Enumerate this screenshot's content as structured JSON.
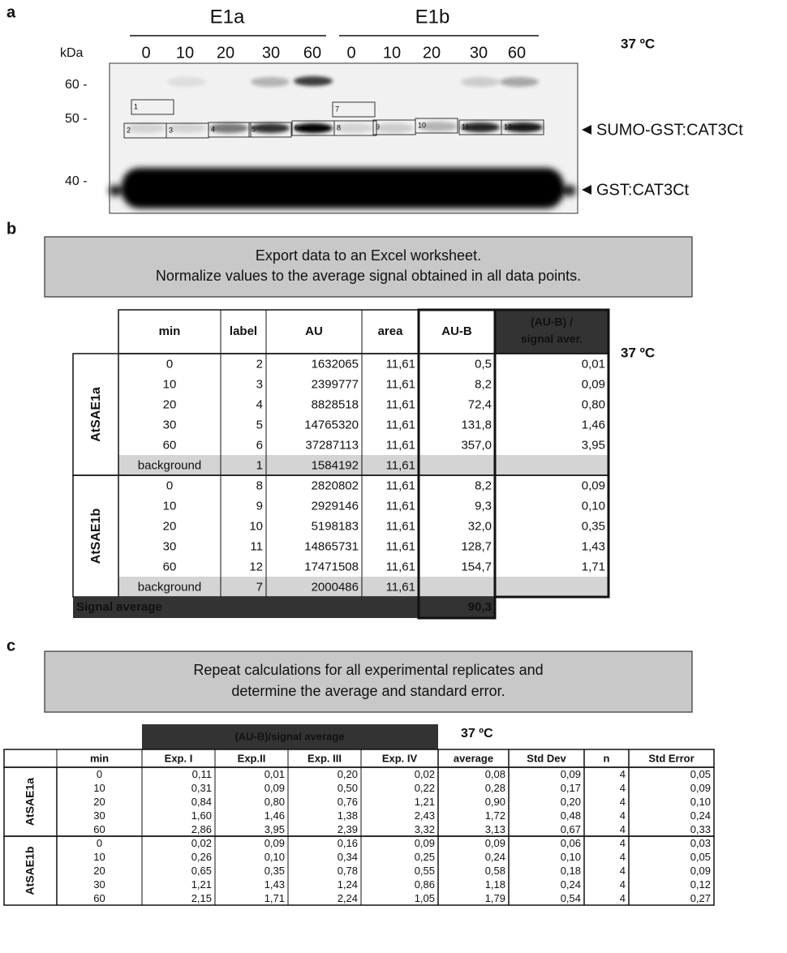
{
  "panel_a": {
    "letter": "a",
    "groups": [
      "E1a",
      "E1b"
    ],
    "lanes": [
      "0",
      "10",
      "20",
      "30",
      "60",
      "0",
      "10",
      "20",
      "30",
      "60"
    ],
    "kda_label": "kDa",
    "markers": [
      "60 -",
      "50 -",
      "40 -"
    ],
    "temperature": "37 ºC",
    "box_labels": [
      "1",
      "2",
      "3",
      "4",
      "5",
      "6",
      "7",
      "8",
      "9",
      "10",
      "11",
      "12"
    ],
    "bands": [
      "SUMO-GST:CAT3Ct",
      "GST:CAT3Ct"
    ]
  },
  "panel_b": {
    "letter": "b",
    "instruction": [
      "Export data to an Excel worksheet.",
      "Normalize values to the average signal obtained in all data points."
    ],
    "temperature": "37 ºC",
    "header": [
      "min",
      "label",
      "AU",
      "area",
      "AU-B"
    ],
    "header_last": [
      "(AU-B) /",
      "signal aver."
    ],
    "groups": [
      {
        "name": "AtSAE1a",
        "rows": [
          [
            "0",
            "2",
            "1632065",
            "11,61",
            "0,5",
            "0,01"
          ],
          [
            "10",
            "3",
            "2399777",
            "11,61",
            "8,2",
            "0,09"
          ],
          [
            "20",
            "4",
            "8828518",
            "11,61",
            "72,4",
            "0,80"
          ],
          [
            "30",
            "5",
            "14765320",
            "11,61",
            "131,8",
            "1,46"
          ],
          [
            "60",
            "6",
            "37287113",
            "11,61",
            "357,0",
            "3,95"
          ],
          [
            "background",
            "1",
            "1584192",
            "11,61"
          ]
        ]
      },
      {
        "name": "AtSAE1b",
        "rows": [
          [
            "0",
            "8",
            "2820802",
            "11,61",
            "8,2",
            "0,09"
          ],
          [
            "10",
            "9",
            "2929146",
            "11,61",
            "9,3",
            "0,10"
          ],
          [
            "20",
            "10",
            "5198183",
            "11,61",
            "32,0",
            "0,35"
          ],
          [
            "30",
            "11",
            "14865731",
            "11,61",
            "128,7",
            "1,43"
          ],
          [
            "60",
            "12",
            "17471508",
            "11,61",
            "154,7",
            "1,71"
          ],
          [
            "background",
            "7",
            "2000486",
            "11,61"
          ]
        ]
      }
    ],
    "footer": {
      "label": "Signal average",
      "value": "90,3"
    }
  },
  "panel_c": {
    "letter": "c",
    "instruction": [
      "Repeat calculations for all experimental replicates and",
      "determine the average and standard error."
    ],
    "super_header": "(AU-B)/signal average",
    "temperature": "37 ºC",
    "header": [
      "min",
      "Exp. I",
      "Exp.II",
      "Exp. III",
      "Exp. IV",
      "average",
      "Std Dev",
      "n",
      "Std Error"
    ],
    "groups": [
      {
        "name": "AtSAE1a",
        "rows": [
          [
            "0",
            "0,11",
            "0,01",
            "0,20",
            "0,02",
            "0,08",
            "0,09",
            "4",
            "0,05"
          ],
          [
            "10",
            "0,31",
            "0,09",
            "0,50",
            "0,22",
            "0,28",
            "0,17",
            "4",
            "0,09"
          ],
          [
            "20",
            "0,84",
            "0,80",
            "0,76",
            "1,21",
            "0,90",
            "0,20",
            "4",
            "0,10"
          ],
          [
            "30",
            "1,60",
            "1,46",
            "1,38",
            "2,43",
            "1,72",
            "0,48",
            "4",
            "0,24"
          ],
          [
            "60",
            "2,86",
            "3,95",
            "2,39",
            "3,32",
            "3,13",
            "0,67",
            "4",
            "0,33"
          ]
        ]
      },
      {
        "name": "AtSAE1b",
        "rows": [
          [
            "0",
            "0,02",
            "0,09",
            "0,16",
            "0,09",
            "0,09",
            "0,06",
            "4",
            "0,03"
          ],
          [
            "10",
            "0,26",
            "0,10",
            "0,34",
            "0,25",
            "0,24",
            "0,10",
            "4",
            "0,05"
          ],
          [
            "20",
            "0,65",
            "0,35",
            "0,78",
            "0,55",
            "0,58",
            "0,18",
            "4",
            "0,09"
          ],
          [
            "30",
            "1,21",
            "1,43",
            "1,24",
            "0,86",
            "1,18",
            "0,24",
            "4",
            "0,12"
          ],
          [
            "60",
            "2,15",
            "1,71",
            "2,24",
            "1,05",
            "1,79",
            "0,54",
            "4",
            "0,27"
          ]
        ]
      }
    ]
  }
}
